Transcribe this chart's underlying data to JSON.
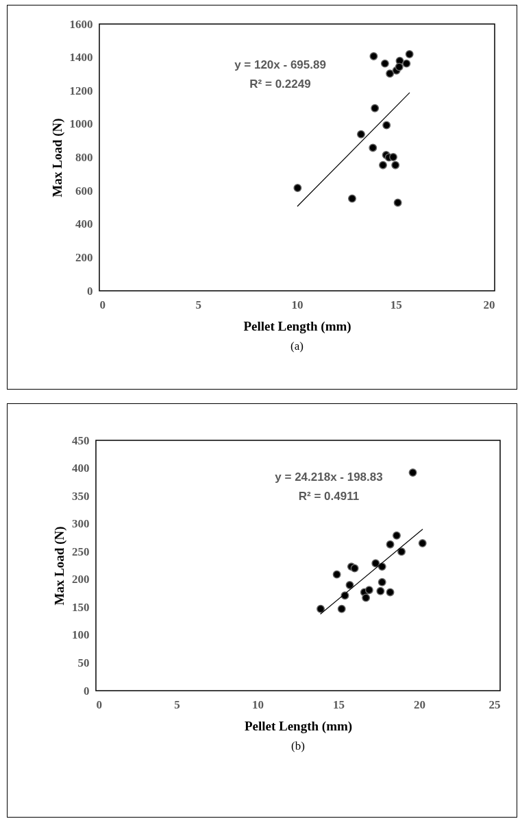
{
  "chart_data": [
    {
      "type": "scatter",
      "xlabel": "Pellet Length (mm)",
      "ylabel": "Max Load (N)",
      "xlim": [
        0,
        20
      ],
      "xticks": [
        0,
        5,
        10,
        15,
        20
      ],
      "ylim": [
        0,
        1600
      ],
      "yticks": [
        0,
        200,
        400,
        600,
        800,
        1000,
        1200,
        1400,
        1600
      ],
      "series": [
        {
          "type": "scatter",
          "marker": "circle",
          "color": "#000000",
          "x": [
            13.88,
            14.45,
            14.7,
            15.03,
            15.2,
            15.17,
            15.54,
            15.69,
            13.94,
            14.53,
            13.24,
            13.84,
            14.51,
            14.65,
            14.87,
            14.35,
            14.98,
            10.03,
            12.79,
            15.1
          ],
          "values": [
            1407,
            1363,
            1303,
            1321,
            1379,
            1343,
            1363,
            1419,
            1095,
            993,
            939,
            858,
            814,
            800,
            802,
            754,
            754,
            617,
            553,
            529
          ]
        },
        {
          "type": "line",
          "marker": "none",
          "color": "#000000",
          "x": [
            10.03,
            15.69
          ],
          "values": [
            508,
            1187
          ]
        }
      ],
      "annotations": [
        "(a)",
        "y = 120x - 695.89",
        "R² = 0.2249"
      ]
    },
    {
      "type": "scatter",
      "xlabel": "Pellet Length (mm)",
      "ylabel": "Max Load (N)",
      "xlim": [
        0,
        25
      ],
      "xticks": [
        0,
        5,
        10,
        15,
        20,
        25
      ],
      "ylim": [
        0,
        450
      ],
      "yticks": [
        0,
        50,
        100,
        150,
        200,
        250,
        300,
        350,
        400,
        450
      ],
      "series": [
        {
          "type": "scatter",
          "marker": "circle",
          "color": "#000000",
          "x": [
            13.9,
            14.9,
            15.2,
            15.4,
            15.7,
            15.8,
            16.0,
            16.6,
            16.7,
            16.9,
            17.3,
            17.6,
            17.7,
            17.7,
            18.2,
            18.2,
            18.6,
            18.9,
            19.6,
            20.2
          ],
          "values": [
            147,
            209,
            147,
            171,
            190,
            223,
            220,
            177,
            167,
            181,
            229,
            179,
            223,
            195,
            263,
            177,
            279,
            250,
            392,
            265
          ]
        },
        {
          "type": "line",
          "marker": "none",
          "color": "#000000",
          "x": [
            13.9,
            20.2
          ],
          "values": [
            138,
            290
          ]
        }
      ],
      "annotations": [
        "(b)",
        "y = 24.218x - 198.83",
        "R² = 0.4911"
      ]
    }
  ]
}
